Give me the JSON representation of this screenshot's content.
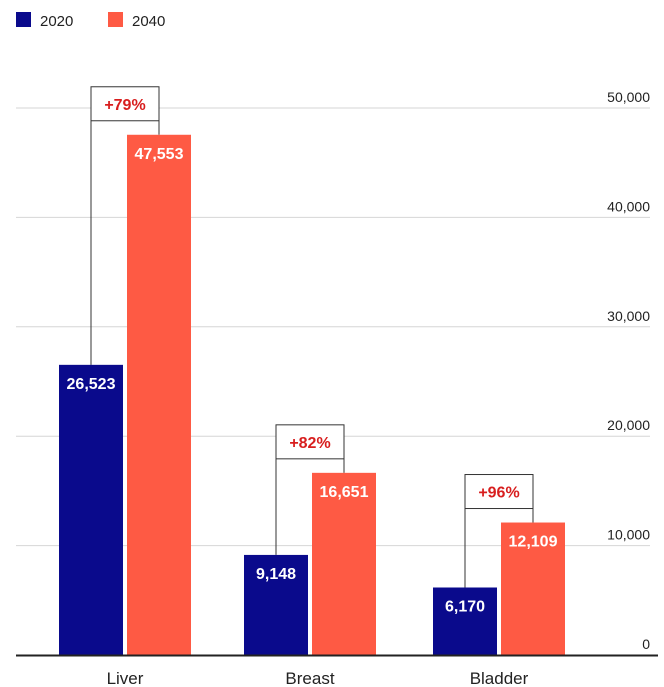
{
  "chart_data": {
    "type": "bar",
    "categories": [
      "Liver",
      "Breast",
      "Bladder"
    ],
    "series": [
      {
        "name": "2020",
        "values": [
          26523,
          9148,
          6170
        ],
        "labels": [
          "26,523",
          "9,148",
          "6,170"
        ],
        "color": "#0a0a8c"
      },
      {
        "name": "2040",
        "values": [
          47553,
          16651,
          12109
        ],
        "labels": [
          "47,553",
          "16,651",
          "12,109"
        ],
        "color": "#fe5a44"
      }
    ],
    "changes": [
      "+79%",
      "+82%",
      "+96%"
    ],
    "yticks": [
      0,
      10000,
      20000,
      30000,
      40000,
      50000
    ],
    "ytick_labels": [
      "0",
      "10,000",
      "20,000",
      "30,000",
      "40,000",
      "50,000"
    ],
    "ylim": [
      0,
      50000
    ],
    "grid": true,
    "legend_position": "top-left",
    "change_color": "#d81e1e"
  }
}
